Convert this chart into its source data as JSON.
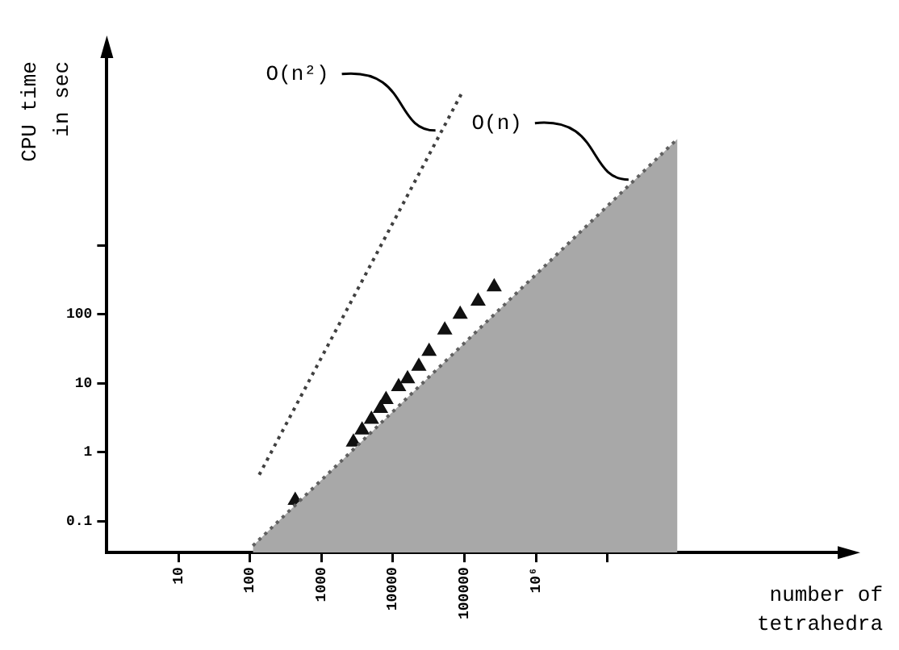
{
  "chart_data": {
    "type": "scatter",
    "xlabel": "number of\ntetrahedra",
    "ylabel": "CPU time\nin sec",
    "log": "xy",
    "grid": false,
    "legend": false,
    "marker": "triangle",
    "xlim": [
      1,
      25000000000
    ],
    "xticks": [
      10,
      100,
      1000,
      10000,
      100000,
      {
        "value": 1000000,
        "label": "10⁶"
      },
      {
        "value": 10000000,
        "label": null
      }
    ],
    "ylim": [
      0.035,
      800000
    ],
    "yticks": [
      0.1,
      1,
      10,
      100,
      {
        "value": 1000,
        "label": null
      }
    ],
    "series": [
      {
        "type": "area",
        "name": "O(n)",
        "color": "#a8a8a8",
        "line_style": "dotted",
        "marker": "none",
        "x": [
          110,
          95000000
        ],
        "values": [
          0.044,
          35000
        ]
      },
      {
        "type": "line",
        "name": "O(n²)",
        "color": "#404040",
        "line_style": "dotted",
        "marker": "none",
        "x": [
          135,
          93000
        ],
        "values": [
          0.47,
          166000
        ]
      },
      {
        "type": "scatter",
        "color": "#111111",
        "x": [
          430,
          2800,
          3700,
          5000,
          6700,
          8000,
          12000,
          16000,
          23000,
          32000,
          53000,
          87000,
          155000,
          260000
        ],
        "values": [
          0.2,
          1.4,
          2.1,
          3.0,
          4.3,
          5.8,
          8.9,
          11.6,
          17.6,
          29,
          59,
          100,
          155,
          250
        ]
      }
    ]
  }
}
